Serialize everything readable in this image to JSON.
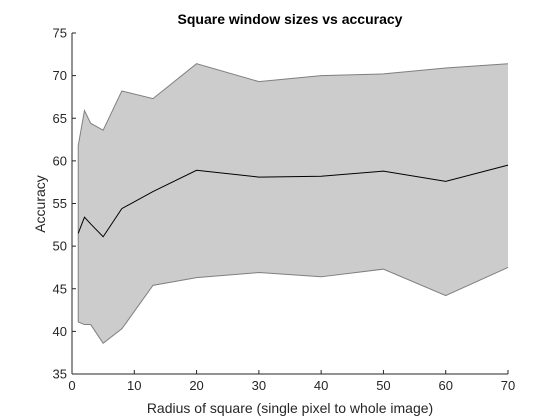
{
  "chart_data": {
    "type": "area",
    "title": "Square window sizes vs accuracy",
    "xlabel": "Radius of square (single pixel to whole image)",
    "ylabel": "Accuracy",
    "xlim": [
      0,
      70
    ],
    "ylim": [
      35,
      75
    ],
    "xticks": [
      0,
      10,
      20,
      30,
      40,
      50,
      60,
      70
    ],
    "yticks": [
      35,
      40,
      45,
      50,
      55,
      60,
      65,
      70,
      75
    ],
    "grid": false,
    "legend": "none",
    "x": [
      1,
      2,
      3,
      5,
      8,
      13,
      20,
      30,
      40,
      50,
      60,
      70
    ],
    "series": [
      {
        "role": "upper-bound",
        "values": [
          61.8,
          65.9,
          64.4,
          63.6,
          68.2,
          67.3,
          71.4,
          69.3,
          70.0,
          70.2,
          70.9,
          71.4
        ]
      },
      {
        "role": "mean",
        "values": [
          51.5,
          53.4,
          52.6,
          51.1,
          54.4,
          56.4,
          58.9,
          58.1,
          58.2,
          58.8,
          57.6,
          59.5
        ]
      },
      {
        "role": "lower-bound",
        "values": [
          41.1,
          40.8,
          40.8,
          38.6,
          40.3,
          45.4,
          46.3,
          46.9,
          46.4,
          47.3,
          44.2,
          47.5
        ]
      }
    ],
    "colors": {
      "band_fill": "#cccccc",
      "band_edge": "#7f7f7f",
      "mean_line": "#000000",
      "axis": "#262626"
    }
  }
}
